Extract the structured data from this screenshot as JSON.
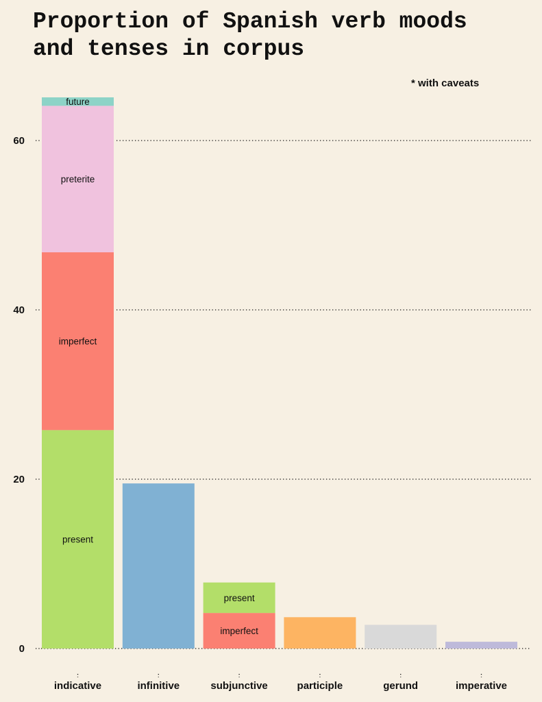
{
  "chart_data": {
    "type": "bar",
    "stacked": true,
    "title": "Proportion of Spanish verb moods and tenses in corpus",
    "subtitle": "* with caveats",
    "xlabel": "",
    "ylabel": "",
    "ylim": [
      0,
      65
    ],
    "yticks": [
      0,
      20,
      40,
      60
    ],
    "grid": "horizontal dotted",
    "legend": "none",
    "categories": [
      "indicative",
      "infinitive",
      "subjunctive",
      "participle",
      "gerund",
      "imperative"
    ],
    "bars": [
      {
        "category": "indicative",
        "segments": [
          {
            "label": "present",
            "value": 25.8,
            "color": "#b3de69"
          },
          {
            "label": "imperfect",
            "value": 21.0,
            "color": "#fb8072"
          },
          {
            "label": "preterite",
            "value": 17.3,
            "color": "#f0c2de"
          },
          {
            "label": "future",
            "value": 1.0,
            "color": "#8dd3c7"
          }
        ]
      },
      {
        "category": "infinitive",
        "segments": [
          {
            "label": "",
            "value": 19.5,
            "color": "#80b1d3"
          }
        ]
      },
      {
        "category": "subjunctive",
        "segments": [
          {
            "label": "imperfect",
            "value": 4.2,
            "color": "#fb8072"
          },
          {
            "label": "present",
            "value": 3.6,
            "color": "#b3de69"
          }
        ]
      },
      {
        "category": "participle",
        "segments": [
          {
            "label": "",
            "value": 3.7,
            "color": "#fdb462"
          }
        ]
      },
      {
        "category": "gerund",
        "segments": [
          {
            "label": "",
            "value": 2.8,
            "color": "#d9d9d9"
          }
        ]
      },
      {
        "category": "imperative",
        "segments": [
          {
            "label": "",
            "value": 0.8,
            "color": "#bebada"
          }
        ]
      }
    ]
  }
}
